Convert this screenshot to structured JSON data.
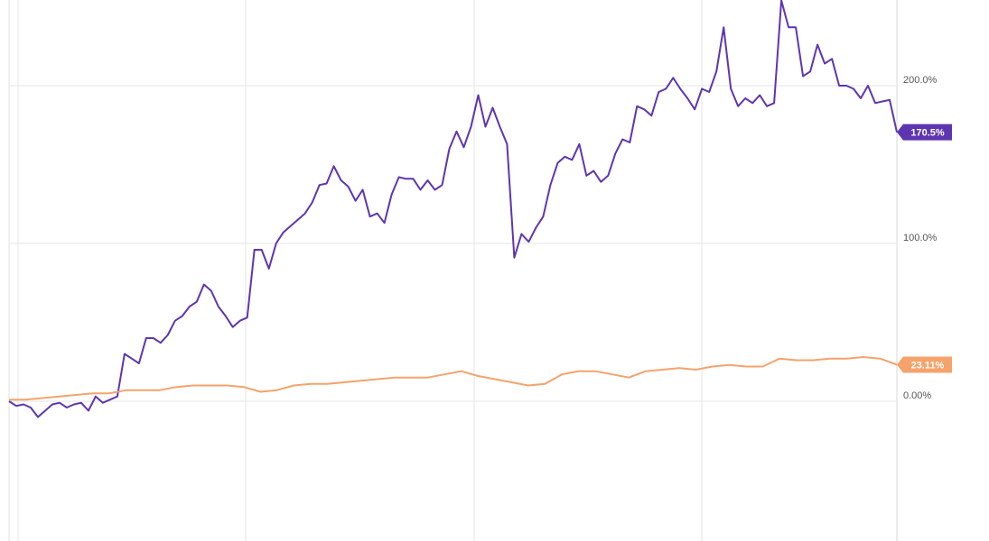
{
  "chart_data": {
    "type": "line",
    "ylim": [
      -88.6,
      254.3
    ],
    "yticks": [
      {
        "value": 0,
        "label": "0.00%"
      },
      {
        "value": 100,
        "label": "100.0%"
      },
      {
        "value": 200,
        "label": "200.0%"
      }
    ],
    "grid": true,
    "series": [
      {
        "color": "#5e35b1",
        "values": [
          0,
          -3,
          -2,
          -4,
          -10,
          -6,
          -2,
          -1,
          -4,
          -2,
          -1,
          -6,
          3,
          -1,
          1,
          3,
          30,
          27,
          24,
          40,
          40,
          37,
          42,
          51,
          54,
          60,
          63,
          74,
          70,
          60,
          54,
          47,
          51,
          53,
          96,
          96,
          84,
          100,
          107,
          111,
          115,
          119,
          126,
          137,
          138,
          149,
          140,
          136,
          127,
          134,
          117,
          119,
          113,
          131,
          142,
          141,
          141,
          134,
          140,
          134,
          137,
          160,
          171,
          161,
          174,
          194,
          174,
          186,
          174,
          163,
          91,
          106,
          101,
          110,
          117,
          137,
          151,
          155,
          153,
          163,
          143,
          146,
          139,
          143,
          157,
          166,
          164,
          187,
          185,
          181,
          196,
          198,
          205,
          198,
          192,
          185,
          198,
          196,
          209,
          237,
          198,
          187,
          192,
          189,
          194,
          187,
          189,
          254,
          237,
          237,
          206,
          209,
          226,
          214,
          217,
          200,
          200,
          198,
          192,
          200,
          189,
          190,
          191,
          170.5
        ],
        "value_labels": [
          null,
          null,
          null,
          null,
          null,
          null,
          null,
          null,
          null,
          null,
          null,
          null,
          null,
          null,
          null,
          null,
          null,
          null,
          null,
          null,
          null,
          null,
          null,
          null,
          null,
          null,
          null,
          null,
          null,
          null,
          null,
          null,
          null,
          null,
          null,
          null,
          null,
          null,
          null,
          null,
          null,
          null,
          null,
          null,
          null,
          null,
          null,
          null,
          null,
          null,
          null,
          null,
          null,
          null,
          null,
          null,
          null,
          null,
          null,
          null,
          null,
          null,
          null,
          null,
          null,
          null,
          null,
          null,
          null,
          null,
          null,
          null,
          null,
          null,
          null,
          null,
          null,
          null,
          null,
          null,
          null,
          null,
          null,
          null,
          null,
          null,
          null,
          null,
          null,
          null,
          null,
          null,
          null,
          null,
          null,
          null,
          null,
          null,
          null,
          null,
          null,
          null,
          null,
          null,
          null,
          null,
          null,
          null,
          null,
          null,
          null,
          null,
          null,
          null,
          null,
          null,
          null,
          null,
          null,
          null,
          null,
          null,
          null,
          "170.5%"
        ]
      },
      {
        "color": "#f4a36c",
        "values": [
          1,
          1,
          2,
          3,
          4,
          5,
          5,
          7,
          7,
          7,
          9,
          10,
          10,
          10,
          9,
          6,
          7,
          10,
          11,
          11,
          12,
          13,
          14,
          15,
          15,
          15,
          17,
          19,
          16,
          14,
          12,
          10,
          11,
          17,
          19,
          19,
          17,
          15,
          19,
          20,
          21,
          20,
          22,
          23,
          22,
          22,
          27,
          26,
          26,
          27,
          27,
          28,
          27,
          23.11
        ],
        "value_labels": [
          null,
          null,
          null,
          null,
          null,
          null,
          null,
          null,
          null,
          null,
          null,
          null,
          null,
          null,
          null,
          null,
          null,
          null,
          null,
          null,
          null,
          null,
          null,
          null,
          null,
          null,
          null,
          null,
          null,
          null,
          null,
          null,
          null,
          null,
          null,
          null,
          null,
          null,
          null,
          null,
          null,
          null,
          null,
          null,
          null,
          null,
          null,
          null,
          null,
          null,
          null,
          null,
          null,
          "23.11%"
        ]
      }
    ]
  }
}
